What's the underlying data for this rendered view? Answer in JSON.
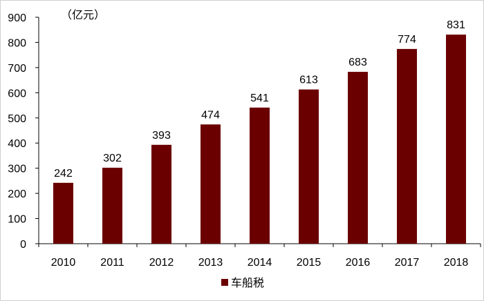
{
  "chart_data": {
    "type": "bar",
    "categories": [
      "2010",
      "2011",
      "2012",
      "2013",
      "2014",
      "2015",
      "2016",
      "2017",
      "2018"
    ],
    "series": [
      {
        "name": "车船税",
        "values": [
          242,
          302,
          393,
          474,
          541,
          613,
          683,
          774,
          831
        ],
        "color": "#6b0000"
      }
    ],
    "unit_label": "（亿元）",
    "ylim": [
      0,
      900
    ],
    "yticks": [
      0,
      100,
      200,
      300,
      400,
      500,
      600,
      700,
      800,
      900
    ],
    "grid": false,
    "legend_position": "bottom"
  }
}
